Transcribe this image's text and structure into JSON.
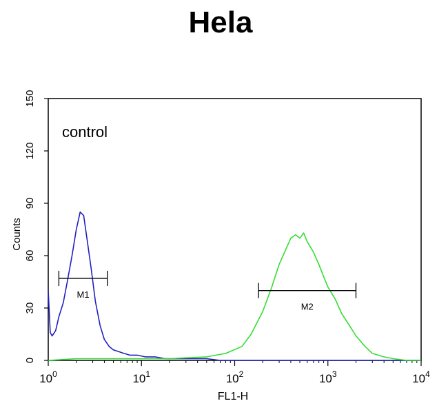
{
  "chart_data": {
    "type": "line",
    "title": "Hela",
    "xlabel": "FL1-H",
    "ylabel": "Counts",
    "x_scale": "log",
    "xlim": [
      1,
      10000
    ],
    "ylim": [
      0,
      150
    ],
    "x_ticks": [
      {
        "value": 1,
        "base": "10",
        "exp": "0"
      },
      {
        "value": 10,
        "base": "10",
        "exp": "1"
      },
      {
        "value": 100,
        "base": "10",
        "exp": "2"
      },
      {
        "value": 1000,
        "base": "10",
        "exp": "3"
      },
      {
        "value": 10000,
        "base": "10",
        "exp": "4"
      }
    ],
    "y_ticks": [
      "0",
      "30",
      "60",
      "90",
      "120",
      "150"
    ],
    "annotation": "control",
    "grid": false,
    "series": [
      {
        "color": "#2020c0",
        "x": [
          1.0,
          1.05,
          1.1,
          1.2,
          1.3,
          1.45,
          1.6,
          1.8,
          2.0,
          2.2,
          2.4,
          2.6,
          2.9,
          3.2,
          3.6,
          4.0,
          4.5,
          5.0,
          5.7,
          6.5,
          7.5,
          9,
          11,
          14,
          18,
          25,
          35,
          50,
          70,
          100,
          150,
          300,
          1000,
          10000
        ],
        "y": [
          40,
          16,
          14,
          17,
          25,
          33,
          45,
          60,
          75,
          85,
          83,
          70,
          52,
          34,
          20,
          12,
          8,
          6,
          5,
          4,
          3,
          3,
          2,
          2,
          1,
          1,
          1,
          1,
          0,
          0,
          0,
          0,
          0,
          0
        ]
      },
      {
        "color": "#33dd33",
        "x": [
          1.0,
          2,
          5,
          10,
          20,
          50,
          80,
          120,
          150,
          200,
          250,
          300,
          350,
          400,
          450,
          500,
          550,
          600,
          700,
          800,
          900,
          1000,
          1200,
          1400,
          1700,
          2000,
          2500,
          3000,
          4000,
          5000,
          7000,
          10000
        ],
        "y": [
          0,
          1,
          1,
          1,
          1,
          2,
          4,
          8,
          15,
          28,
          42,
          55,
          63,
          70,
          72,
          70,
          73,
          68,
          62,
          55,
          48,
          42,
          35,
          27,
          20,
          14,
          8,
          4,
          2,
          1,
          0,
          0
        ]
      }
    ],
    "markers": [
      {
        "label": "M1",
        "x_start": 1.3,
        "x_end": 4.3,
        "y": 47
      },
      {
        "label": "M2",
        "x_start": 180,
        "x_end": 2000,
        "y": 40
      }
    ]
  }
}
